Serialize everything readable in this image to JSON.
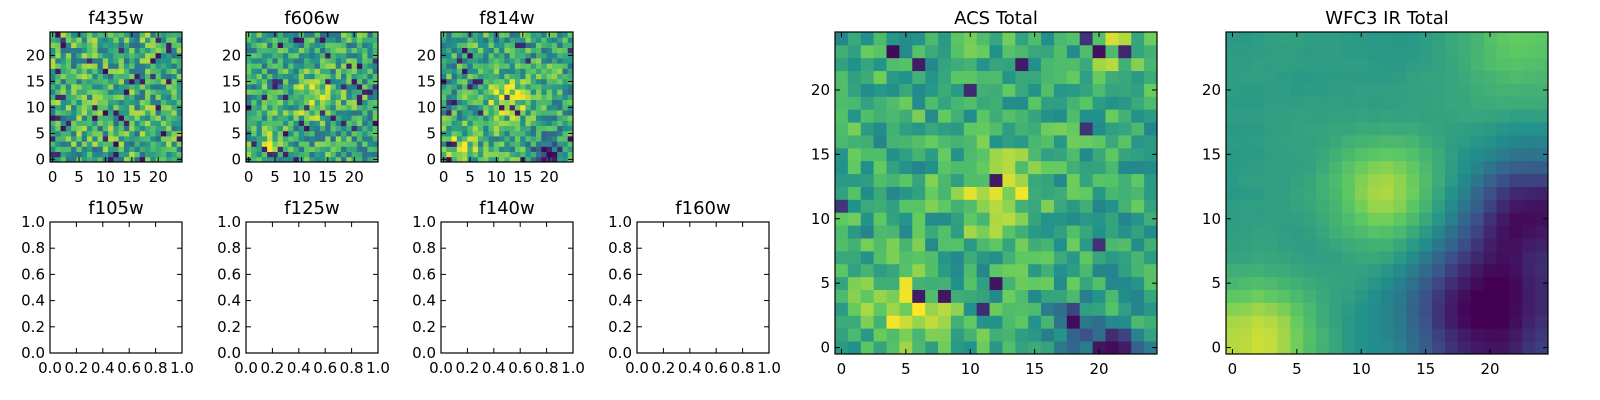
{
  "figure": {
    "colormap": [
      "#440154",
      "#3b528b",
      "#21918c",
      "#5ec962",
      "#fde725"
    ]
  },
  "chart_data": [
    {
      "id": "f435w",
      "type": "heatmap",
      "title": "f435w",
      "grid_size": 25,
      "xlim": [
        -0.5,
        24.5
      ],
      "ylim": [
        -0.5,
        24.5
      ],
      "xticks": [
        0,
        5,
        10,
        15,
        20
      ],
      "yticks": [
        0,
        5,
        10,
        15,
        20
      ],
      "pattern": {
        "seed": 11,
        "hot_spots": [],
        "cold_spots": [],
        "base": 0.62,
        "noise": 0.55,
        "smooth": 0,
        "dark_rate": 0.06
      }
    },
    {
      "id": "f606w",
      "type": "heatmap",
      "title": "f606w",
      "grid_size": 25,
      "xlim": [
        -0.5,
        24.5
      ],
      "ylim": [
        -0.5,
        24.5
      ],
      "xticks": [
        0,
        5,
        10,
        15,
        20
      ],
      "yticks": [
        0,
        5,
        10,
        15,
        20
      ],
      "pattern": {
        "seed": 23,
        "hot_spots": [
          [
            12,
            12,
            4,
            0.25
          ],
          [
            4,
            3,
            3,
            0.25
          ]
        ],
        "cold_spots": [],
        "base": 0.6,
        "noise": 0.5,
        "smooth": 0,
        "dark_rate": 0.05
      }
    },
    {
      "id": "f814w",
      "type": "heatmap",
      "title": "f814w",
      "grid_size": 25,
      "xlim": [
        -0.5,
        24.5
      ],
      "ylim": [
        -0.5,
        24.5
      ],
      "xticks": [
        0,
        5,
        10,
        15,
        20
      ],
      "yticks": [
        0,
        5,
        10,
        15,
        20
      ],
      "pattern": {
        "seed": 37,
        "hot_spots": [
          [
            12,
            12,
            4,
            0.3
          ],
          [
            3,
            2,
            3,
            0.3
          ]
        ],
        "cold_spots": [
          [
            20,
            1,
            3,
            0.4
          ]
        ],
        "base": 0.6,
        "noise": 0.5,
        "smooth": 0,
        "dark_rate": 0.05
      }
    },
    {
      "id": "f105w",
      "type": "empty",
      "title": "f105w",
      "xlim": [
        0,
        1
      ],
      "ylim": [
        0,
        1
      ],
      "xticks": [
        "0.0",
        "0.2",
        "0.4",
        "0.6",
        "0.8",
        "1.0"
      ],
      "yticks": [
        "0.0",
        "0.2",
        "0.4",
        "0.6",
        "0.8",
        "1.0"
      ]
    },
    {
      "id": "f125w",
      "type": "empty",
      "title": "f125w",
      "xlim": [
        0,
        1
      ],
      "ylim": [
        0,
        1
      ],
      "xticks": [
        "0.0",
        "0.2",
        "0.4",
        "0.6",
        "0.8",
        "1.0"
      ],
      "yticks": [
        "0.0",
        "0.2",
        "0.4",
        "0.6",
        "0.8",
        "1.0"
      ]
    },
    {
      "id": "f140w",
      "type": "empty",
      "title": "f140w",
      "xlim": [
        0,
        1
      ],
      "ylim": [
        0,
        1
      ],
      "xticks": [
        "0.0",
        "0.2",
        "0.4",
        "0.6",
        "0.8",
        "1.0"
      ],
      "yticks": [
        "0.0",
        "0.2",
        "0.4",
        "0.6",
        "0.8",
        "1.0"
      ]
    },
    {
      "id": "f160w",
      "type": "empty",
      "title": "f160w",
      "xlim": [
        0,
        1
      ],
      "ylim": [
        0,
        1
      ],
      "xticks": [
        "0.0",
        "0.2",
        "0.4",
        "0.6",
        "0.8",
        "1.0"
      ],
      "yticks": [
        "0.0",
        "0.2",
        "0.4",
        "0.6",
        "0.8",
        "1.0"
      ]
    },
    {
      "id": "acs_total",
      "type": "heatmap",
      "title": "ACS Total",
      "grid_size": 25,
      "xlim": [
        -0.5,
        24.5
      ],
      "ylim": [
        -0.5,
        24.5
      ],
      "xticks": [
        0,
        5,
        10,
        15,
        20
      ],
      "yticks": [
        0,
        5,
        10,
        15,
        20
      ],
      "pattern": {
        "seed": 53,
        "hot_spots": [
          [
            12,
            12,
            3,
            0.3
          ],
          [
            5,
            3,
            3,
            0.3
          ],
          [
            21,
            23,
            2,
            0.2
          ]
        ],
        "cold_spots": [
          [
            21,
            0,
            2,
            0.5
          ],
          [
            18,
            2,
            1.5,
            0.4
          ]
        ],
        "base": 0.62,
        "noise": 0.35,
        "smooth": 0,
        "dark_rate": 0.03
      }
    },
    {
      "id": "wfc3_ir_total",
      "type": "heatmap",
      "title": "WFC3 IR Total",
      "grid_size": 25,
      "xlim": [
        -0.5,
        24.5
      ],
      "ylim": [
        -0.5,
        24.5
      ],
      "xticks": [
        0,
        5,
        10,
        15,
        20
      ],
      "yticks": [
        0,
        5,
        10,
        15,
        20
      ],
      "pattern": {
        "seed": 71,
        "hot_spots": [
          [
            12,
            12,
            4,
            0.35
          ],
          [
            2,
            1,
            4,
            0.4
          ],
          [
            22,
            23,
            4,
            0.2
          ]
        ],
        "cold_spots": [
          [
            20,
            3,
            6,
            0.6
          ],
          [
            23,
            11,
            4,
            0.45
          ]
        ],
        "base": 0.55,
        "noise": 0.1,
        "smooth": 1,
        "dark_rate": 0
      }
    }
  ]
}
